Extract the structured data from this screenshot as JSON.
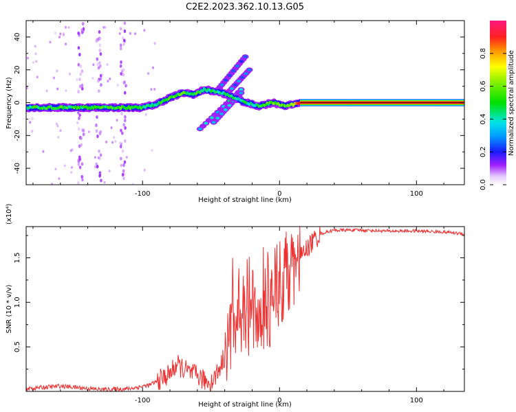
{
  "title": "C2E2.2023.362.10.13.G05",
  "chart_data": [
    {
      "type": "heatmap",
      "panel": "spectrogram",
      "xlabel": "Height of straight line (km)",
      "ylabel": "Frequency (Hz)",
      "xlim": [
        -185,
        135
      ],
      "ylim": [
        -50,
        50
      ],
      "xticks": [
        -100,
        0,
        100
      ],
      "yticks": [
        -40,
        -20,
        0,
        20,
        40
      ],
      "colorbar": {
        "label": "Normalized spectral amplitude",
        "range": [
          0,
          1
        ],
        "ticks": [
          0.0,
          0.2,
          0.4,
          0.6,
          0.8
        ],
        "tick_labels": [
          "0.0",
          "0.2",
          "0.4",
          "0.6",
          "0.8"
        ]
      },
      "ridge": {
        "x": [
          -185,
          -170,
          -150,
          -130,
          -110,
          -100,
          -90,
          -80,
          -70,
          -62,
          -55,
          -48,
          -42,
          -36,
          -30,
          -25,
          -20,
          -15,
          -10,
          -5,
          0,
          5,
          10,
          15,
          135
        ],
        "freq_hz": [
          -3,
          -3,
          -3,
          -3,
          -3,
          -3,
          -1,
          3,
          6,
          5,
          8,
          7,
          6,
          4,
          2,
          0,
          -1,
          -2,
          -1,
          0,
          -1,
          -2,
          -1,
          0,
          0
        ],
        "amplitude": [
          0.45,
          0.5,
          0.5,
          0.5,
          0.5,
          0.5,
          0.45,
          0.5,
          0.55,
          0.5,
          0.5,
          0.45,
          0.45,
          0.5,
          0.4,
          0.45,
          0.4,
          0.5,
          0.5,
          0.55,
          0.6,
          0.55,
          0.6,
          0.9,
          0.98
        ]
      },
      "branches": [
        {
          "x": [
            -58,
            -28
          ],
          "freq_hz": [
            -16,
            8
          ],
          "amplitude": 0.3
        },
        {
          "x": [
            -48,
            -28
          ],
          "freq_hz": [
            -12,
            6
          ],
          "amplitude": 0.25
        },
        {
          "x": [
            -45,
            -25
          ],
          "freq_hz": [
            8,
            28
          ],
          "amplitude": 0.2
        },
        {
          "x": [
            -40,
            -22
          ],
          "freq_hz": [
            4,
            20
          ],
          "amplitude": 0.2
        }
      ],
      "noise_columns_x": [
        -145,
        -132,
        -114
      ]
    },
    {
      "type": "line",
      "panel": "snr",
      "xlabel": "Height of straight line (km)",
      "ylabel": "SNR (10 * v/v)",
      "multiplier_label": "(x10⁴)",
      "xlim": [
        -185,
        135
      ],
      "ylim": [
        0.0,
        1.85
      ],
      "xticks": [
        -100,
        0,
        100
      ],
      "yticks": [
        0.5,
        1.0,
        1.5
      ],
      "ytick_labels": [
        "0.5",
        "1.0",
        "1.5"
      ],
      "series": [
        {
          "name": "SNR",
          "color": "#ee3030",
          "x": [
            -185,
            -160,
            -130,
            -110,
            -95,
            -85,
            -80,
            -75,
            -70,
            -65,
            -60,
            -55,
            -50,
            -45,
            -40,
            -35,
            -30,
            -25,
            -20,
            -15,
            -10,
            -5,
            0,
            5,
            10,
            15,
            20,
            25,
            30,
            40,
            60,
            80,
            100,
            120,
            135
          ],
          "y": [
            0.03,
            0.06,
            0.02,
            0.03,
            0.07,
            0.15,
            0.2,
            0.3,
            0.25,
            0.2,
            0.18,
            0.12,
            0.1,
            0.22,
            0.4,
            0.7,
            0.85,
            0.75,
            0.8,
            0.9,
            0.85,
            1.0,
            1.1,
            1.25,
            1.35,
            1.5,
            1.6,
            1.7,
            1.77,
            1.81,
            1.81,
            1.8,
            1.8,
            1.79,
            1.77
          ]
        }
      ]
    }
  ],
  "colors": {
    "snr_line": "#ee3030",
    "ridge_peak": "#e8101a"
  }
}
